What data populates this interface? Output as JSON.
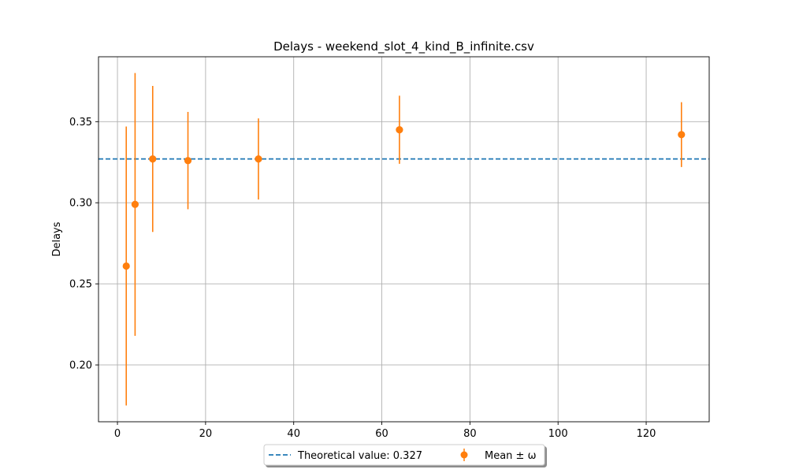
{
  "chart_data": {
    "type": "scatter",
    "title": "Delays - weekend_slot_4_kind_B_infinite.csv",
    "xlabel": "",
    "ylabel": "Delays",
    "xlim": [
      -4.3,
      134.3
    ],
    "ylim": [
      0.165,
      0.39
    ],
    "grid": true,
    "x_ticks": [
      0,
      20,
      40,
      60,
      80,
      100,
      120
    ],
    "y_ticks": [
      0.2,
      0.25,
      0.3,
      0.35
    ],
    "x_tick_labels": [
      "0",
      "20",
      "40",
      "60",
      "80",
      "100",
      "120"
    ],
    "y_tick_labels": [
      "0.20",
      "0.25",
      "0.30",
      "0.35"
    ],
    "reference_line": {
      "label": "Theoretical value: 0.327",
      "y": 0.327,
      "style": "dashed",
      "color": "#1f77b4"
    },
    "series": [
      {
        "name": "Mean ± ω",
        "color": "#ff7f0e",
        "x": [
          2,
          4,
          8,
          16,
          32,
          64,
          128
        ],
        "y": [
          0.261,
          0.299,
          0.327,
          0.326,
          0.327,
          0.345,
          0.342
        ],
        "err_low": [
          0.175,
          0.218,
          0.282,
          0.296,
          0.302,
          0.324,
          0.322
        ],
        "err_high": [
          0.347,
          0.38,
          0.372,
          0.356,
          0.352,
          0.366,
          0.362
        ]
      }
    ],
    "legend": {
      "placement": "bottom-center outside",
      "columns": 2
    }
  }
}
